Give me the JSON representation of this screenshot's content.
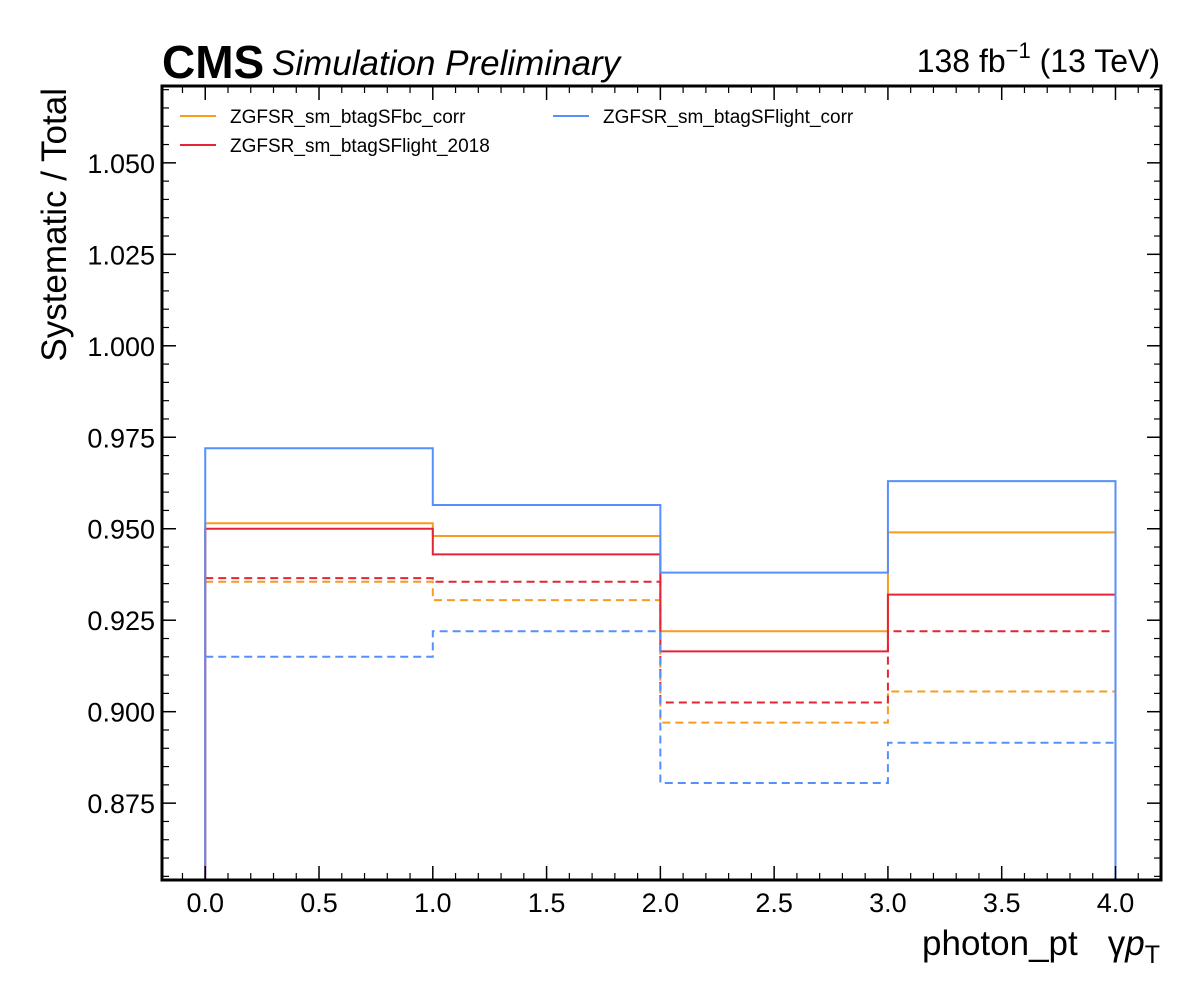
{
  "header": {
    "cms_label": "CMS",
    "status_label": "Simulation Preliminary",
    "lumi_value": "138 fb",
    "lumi_exponent": "−1",
    "lumi_energy": " (13 TeV)"
  },
  "chart_data": {
    "type": "line",
    "drawstyle": "steps",
    "xlabel": "photon_pt",
    "xlabel_extra_prefix": "γ",
    "xlabel_extra_main": "p",
    "xlabel_extra_sub": "T",
    "ylabel": "Systematic / Total",
    "xlim": [
      -0.19,
      4.2
    ],
    "ylim": [
      0.854,
      1.071
    ],
    "x_ticks": [
      0.0,
      0.5,
      1.0,
      1.5,
      2.0,
      2.5,
      3.0,
      3.5,
      4.0
    ],
    "x_tick_labels": [
      "0.0",
      "0.5",
      "1.0",
      "1.5",
      "2.0",
      "2.5",
      "3.0",
      "3.5",
      "4.0"
    ],
    "y_ticks": [
      0.875,
      0.9,
      0.925,
      0.95,
      0.975,
      1.0,
      1.025,
      1.05
    ],
    "y_tick_labels": [
      "0.875",
      "0.900",
      "0.925",
      "0.950",
      "0.975",
      "1.000",
      "1.025",
      "1.050"
    ],
    "bin_edges": [
      0,
      1,
      2,
      3,
      4
    ],
    "grid": false,
    "legend_position": "top-left",
    "legend": [
      {
        "name": "ZGFSR_sm_btagSFbc_corr",
        "color": "#f89c20"
      },
      {
        "name": "ZGFSR_sm_btagSFlight_2018",
        "color": "#e42536"
      },
      {
        "name": "ZGFSR_sm_btagSFlight_corr",
        "color": "#5790fc"
      }
    ],
    "series": [
      {
        "name": "ZGFSR_sm_btagSFbc_corr",
        "variation": "up",
        "color": "#f89c20",
        "dashed": false,
        "values": [
          0.9515,
          0.948,
          0.922,
          0.949
        ]
      },
      {
        "name": "ZGFSR_sm_btagSFbc_corr",
        "variation": "down",
        "color": "#f89c20",
        "dashed": true,
        "values": [
          0.9355,
          0.9305,
          0.897,
          0.9055
        ]
      },
      {
        "name": "ZGFSR_sm_btagSFlight_2018",
        "variation": "up",
        "color": "#e42536",
        "dashed": false,
        "values": [
          0.95,
          0.943,
          0.9165,
          0.932
        ]
      },
      {
        "name": "ZGFSR_sm_btagSFlight_2018",
        "variation": "down",
        "color": "#e42536",
        "dashed": true,
        "values": [
          0.9365,
          0.9355,
          0.9025,
          0.922
        ]
      },
      {
        "name": "ZGFSR_sm_btagSFlight_corr",
        "variation": "up",
        "color": "#5790fc",
        "dashed": false,
        "values": [
          0.972,
          0.9565,
          0.938,
          0.963
        ]
      },
      {
        "name": "ZGFSR_sm_btagSFlight_corr",
        "variation": "down",
        "color": "#5790fc",
        "dashed": true,
        "values": [
          0.915,
          0.922,
          0.8805,
          0.8915
        ]
      }
    ]
  }
}
